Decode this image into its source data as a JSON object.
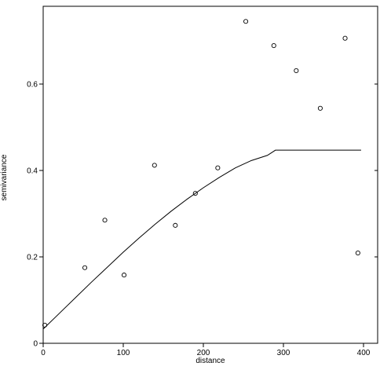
{
  "chart_data": {
    "type": "scatter",
    "title": "",
    "xlabel": "distance",
    "ylabel": "semivariance",
    "xlim": [
      0,
      410
    ],
    "ylim": [
      0,
      0.77
    ],
    "x_ticks": [
      0,
      100,
      200,
      300,
      400
    ],
    "x_tick_labels": [
      "0",
      "100",
      "200",
      "300",
      "400"
    ],
    "y_ticks": [
      0,
      0.2,
      0.4,
      0.6
    ],
    "y_tick_labels": [
      "0",
      "0.2",
      "0.4",
      "0.6"
    ],
    "grid": false,
    "legend": "none",
    "series": [
      {
        "kind": "points",
        "x": [
          2,
          52,
          77,
          101,
          139,
          165,
          190,
          218,
          253,
          288,
          316,
          346,
          377,
          393
        ],
        "y": [
          0.042,
          0.175,
          0.285,
          0.158,
          0.412,
          0.273,
          0.347,
          0.406,
          0.745,
          0.689,
          0.631,
          0.544,
          0.706,
          0.209
        ]
      },
      {
        "kind": "fitted-model-line",
        "x": [
          0,
          20,
          40,
          60,
          80,
          100,
          120,
          140,
          160,
          180,
          200,
          220,
          240,
          260,
          280,
          290,
          300,
          320,
          340,
          360,
          380,
          397
        ],
        "y": [
          0.033,
          0.069,
          0.105,
          0.141,
          0.176,
          0.211,
          0.244,
          0.276,
          0.306,
          0.334,
          0.36,
          0.384,
          0.406,
          0.423,
          0.435,
          0.447,
          0.447,
          0.447,
          0.447,
          0.447,
          0.447,
          0.447
        ]
      }
    ]
  }
}
